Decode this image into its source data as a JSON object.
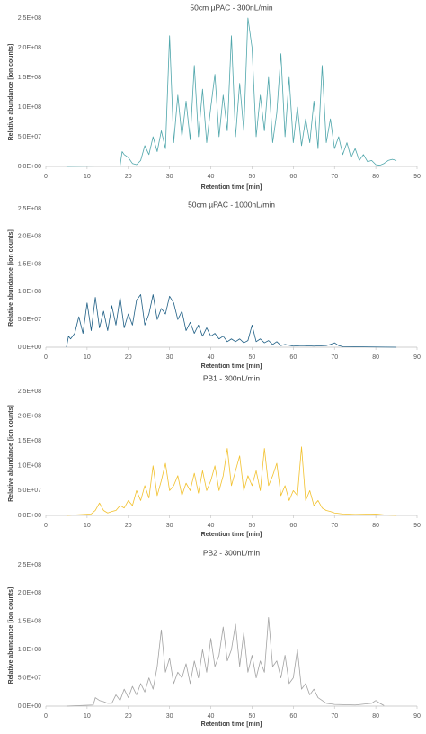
{
  "chart_data": [
    {
      "type": "line",
      "title": "50cm µPAC - 300nL/min",
      "xlabel": "Retention time [min]",
      "ylabel": "Relative abundance [ion counts]",
      "color": "#4fa6ab",
      "xlim": [
        0,
        90
      ],
      "xticks": [
        0,
        10,
        20,
        30,
        40,
        50,
        60,
        70,
        80,
        90
      ],
      "ylim": [
        0,
        250000000.0
      ],
      "yticks": [
        {
          "value": 0,
          "label": "0.0E+00"
        },
        {
          "value": 50000000.0,
          "label": "5.0E+07"
        },
        {
          "value": 100000000.0,
          "label": "1.0E+08"
        },
        {
          "value": 150000000.0,
          "label": "1.5E+08"
        },
        {
          "value": 200000000.0,
          "label": "2.0E+08"
        },
        {
          "value": 250000000.0,
          "label": "2.5E+08"
        }
      ],
      "x": [
        5,
        18,
        18.5,
        19,
        20,
        21,
        22,
        23,
        24,
        25,
        26,
        27,
        28,
        29,
        30,
        31,
        32,
        33,
        34,
        35,
        36,
        37,
        38,
        39,
        40,
        41,
        42,
        43,
        44,
        45,
        46,
        47,
        48,
        49,
        50,
        51,
        52,
        53,
        54,
        55,
        56,
        57,
        58,
        59,
        60,
        61,
        62,
        63,
        64,
        65,
        66,
        67,
        68,
        69,
        70,
        71,
        72,
        73,
        74,
        75,
        76,
        77,
        78,
        79,
        80,
        81,
        82,
        83,
        84,
        85
      ],
      "values": [
        0,
        1000000.0,
        25000000.0,
        20000000.0,
        15000000.0,
        5000000.0,
        3000000.0,
        10000000.0,
        35000000.0,
        20000000.0,
        50000000.0,
        25000000.0,
        60000000.0,
        30000000.0,
        220000000.0,
        40000000.0,
        120000000.0,
        50000000.0,
        110000000.0,
        45000000.0,
        170000000.0,
        50000000.0,
        130000000.0,
        40000000.0,
        100000000.0,
        155000000.0,
        50000000.0,
        120000000.0,
        60000000.0,
        220000000.0,
        50000000.0,
        140000000.0,
        60000000.0,
        250000000.0,
        200000000.0,
        50000000.0,
        120000000.0,
        60000000.0,
        150000000.0,
        40000000.0,
        90000000.0,
        190000000.0,
        50000000.0,
        150000000.0,
        40000000.0,
        100000000.0,
        35000000.0,
        80000000.0,
        40000000.0,
        110000000.0,
        30000000.0,
        170000000.0,
        40000000.0,
        80000000.0,
        30000000.0,
        50000000.0,
        20000000.0,
        40000000.0,
        15000000.0,
        30000000.0,
        10000000.0,
        20000000.0,
        8000000.0,
        10000000.0,
        3000000.0,
        2000000.0,
        5000000.0,
        10000000.0,
        12000000.0,
        10000000.0
      ]
    },
    {
      "type": "line",
      "title": "50cm µPAC - 1000nL/min",
      "xlabel": "Retention time [min]",
      "ylabel": "Relative abundance [ion counts]",
      "color": "#1f5f85",
      "xlim": [
        0,
        90
      ],
      "xticks": [
        0,
        10,
        20,
        30,
        40,
        50,
        60,
        70,
        80,
        90
      ],
      "ylim": [
        0,
        250000000.0
      ],
      "yticks": [
        {
          "value": 0,
          "label": "0.0E+00"
        },
        {
          "value": 50000000.0,
          "label": "5.0E+07"
        },
        {
          "value": 100000000.0,
          "label": "1.0E+08"
        },
        {
          "value": 150000000.0,
          "label": "1.5E+08"
        },
        {
          "value": 200000000.0,
          "label": "2.0E+08"
        },
        {
          "value": 250000000.0,
          "label": "2.5E+08"
        }
      ],
      "x": [
        5,
        5.5,
        6,
        7,
        8,
        9,
        10,
        11,
        12,
        13,
        14,
        15,
        16,
        17,
        18,
        19,
        20,
        21,
        22,
        23,
        24,
        25,
        26,
        27,
        28,
        29,
        30,
        31,
        32,
        33,
        34,
        35,
        36,
        37,
        38,
        39,
        40,
        41,
        42,
        43,
        44,
        45,
        46,
        47,
        48,
        49,
        50,
        51,
        52,
        53,
        54,
        55,
        56,
        57,
        58,
        60,
        62,
        65,
        68,
        69,
        70,
        71,
        72,
        85
      ],
      "values": [
        0,
        20000000.0,
        15000000.0,
        25000000.0,
        55000000.0,
        25000000.0,
        80000000.0,
        30000000.0,
        90000000.0,
        35000000.0,
        65000000.0,
        30000000.0,
        75000000.0,
        40000000.0,
        90000000.0,
        35000000.0,
        60000000.0,
        40000000.0,
        85000000.0,
        95000000.0,
        40000000.0,
        60000000.0,
        95000000.0,
        50000000.0,
        70000000.0,
        60000000.0,
        92000000.0,
        80000000.0,
        50000000.0,
        65000000.0,
        30000000.0,
        45000000.0,
        25000000.0,
        40000000.0,
        20000000.0,
        35000000.0,
        20000000.0,
        25000000.0,
        15000000.0,
        20000000.0,
        10000000.0,
        15000000.0,
        10000000.0,
        15000000.0,
        8000000.0,
        12000000.0,
        40000000.0,
        10000000.0,
        15000000.0,
        8000000.0,
        12000000.0,
        5000000.0,
        10000000.0,
        3000000.0,
        5000000.0,
        2000000.0,
        3000000.0,
        2000000.0,
        3000000.0,
        5000000.0,
        8000000.0,
        3000000.0,
        1000000.0,
        0
      ]
    },
    {
      "type": "line",
      "title": "PB1 - 300nL/min",
      "xlabel": "Retention time [min]",
      "ylabel": "Relative abundance [ion counts]",
      "color": "#f2c12e",
      "xlim": [
        0,
        90
      ],
      "xticks": [
        0,
        10,
        20,
        30,
        40,
        50,
        60,
        70,
        80,
        90
      ],
      "ylim": [
        0,
        250000000.0
      ],
      "yticks": [
        {
          "value": 0,
          "label": "0.0E+00"
        },
        {
          "value": 50000000.0,
          "label": "5.0E+07"
        },
        {
          "value": 100000000.0,
          "label": "1.0E+08"
        },
        {
          "value": 150000000.0,
          "label": "1.5E+08"
        },
        {
          "value": 200000000.0,
          "label": "2.0E+08"
        },
        {
          "value": 250000000.0,
          "label": "2.5E+08"
        }
      ],
      "x": [
        5,
        11,
        12,
        13,
        14,
        15,
        16,
        17,
        18,
        19,
        20,
        21,
        22,
        23,
        24,
        25,
        26,
        27,
        28,
        29,
        30,
        31,
        32,
        33,
        34,
        35,
        36,
        37,
        38,
        39,
        40,
        41,
        42,
        43,
        44,
        45,
        46,
        47,
        48,
        49,
        50,
        51,
        52,
        53,
        54,
        55,
        56,
        57,
        58,
        59,
        60,
        61,
        62,
        63,
        64,
        65,
        66,
        67,
        68,
        69,
        70,
        72,
        75,
        80,
        82,
        85
      ],
      "values": [
        0,
        3000000.0,
        10000000.0,
        25000000.0,
        10000000.0,
        5000000.0,
        8000000.0,
        10000000.0,
        20000000.0,
        15000000.0,
        30000000.0,
        20000000.0,
        50000000.0,
        30000000.0,
        60000000.0,
        35000000.0,
        100000000.0,
        40000000.0,
        70000000.0,
        105000000.0,
        50000000.0,
        60000000.0,
        80000000.0,
        40000000.0,
        65000000.0,
        50000000.0,
        85000000.0,
        45000000.0,
        90000000.0,
        50000000.0,
        70000000.0,
        100000000.0,
        50000000.0,
        80000000.0,
        135000000.0,
        60000000.0,
        90000000.0,
        120000000.0,
        50000000.0,
        80000000.0,
        60000000.0,
        90000000.0,
        50000000.0,
        135000000.0,
        60000000.0,
        80000000.0,
        105000000.0,
        40000000.0,
        60000000.0,
        30000000.0,
        50000000.0,
        40000000.0,
        138000000.0,
        30000000.0,
        50000000.0,
        20000000.0,
        30000000.0,
        15000000.0,
        10000000.0,
        8000000.0,
        5000000.0,
        3000000.0,
        2000000.0,
        3000000.0,
        1000000.0,
        0
      ]
    },
    {
      "type": "line",
      "title": "PB2 - 300nL/min",
      "xlabel": "Retention time [min]",
      "ylabel": "Relative abundance [ion counts]",
      "color": "#a3a3a3",
      "xlim": [
        0,
        90
      ],
      "xticks": [
        0,
        10,
        20,
        30,
        40,
        50,
        60,
        70,
        80,
        90
      ],
      "ylim": [
        0,
        250000000.0
      ],
      "yticks": [
        {
          "value": 0,
          "label": "0.0E+00"
        },
        {
          "value": 50000000.0,
          "label": "5.0E+07"
        },
        {
          "value": 100000000.0,
          "label": "1.0E+08"
        },
        {
          "value": 150000000.0,
          "label": "1.5E+08"
        },
        {
          "value": 200000000.0,
          "label": "2.0E+08"
        },
        {
          "value": 250000000.0,
          "label": "2.5E+08"
        }
      ],
      "x": [
        5,
        11.5,
        12,
        13,
        14,
        15,
        16,
        17,
        18,
        19,
        20,
        21,
        22,
        23,
        24,
        25,
        26,
        27,
        28,
        29,
        30,
        31,
        32,
        33,
        34,
        35,
        36,
        37,
        38,
        39,
        40,
        41,
        42,
        43,
        44,
        45,
        46,
        47,
        48,
        49,
        50,
        51,
        52,
        53,
        54,
        55,
        56,
        57,
        58,
        59,
        60,
        61,
        62,
        63,
        64,
        65,
        66,
        67,
        68,
        70,
        75,
        79,
        80,
        81,
        82
      ],
      "values": [
        0,
        2000000.0,
        15000000.0,
        10000000.0,
        8000000.0,
        5000000.0,
        5000000.0,
        20000000.0,
        10000000.0,
        30000000.0,
        15000000.0,
        35000000.0,
        20000000.0,
        40000000.0,
        25000000.0,
        50000000.0,
        30000000.0,
        70000000.0,
        135000000.0,
        60000000.0,
        85000000.0,
        40000000.0,
        60000000.0,
        50000000.0,
        75000000.0,
        40000000.0,
        80000000.0,
        50000000.0,
        100000000.0,
        60000000.0,
        120000000.0,
        70000000.0,
        90000000.0,
        140000000.0,
        80000000.0,
        100000000.0,
        145000000.0,
        70000000.0,
        130000000.0,
        60000000.0,
        90000000.0,
        50000000.0,
        80000000.0,
        60000000.0,
        157000000.0,
        70000000.0,
        80000000.0,
        50000000.0,
        90000000.0,
        40000000.0,
        50000000.0,
        100000000.0,
        30000000.0,
        40000000.0,
        20000000.0,
        30000000.0,
        15000000.0,
        10000000.0,
        5000000.0,
        3000000.0,
        2000000.0,
        5000000.0,
        10000000.0,
        5000000.0,
        1000000.0
      ]
    }
  ]
}
